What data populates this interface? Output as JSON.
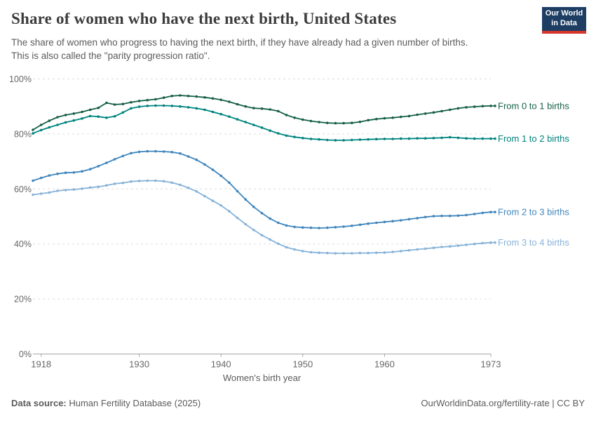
{
  "header": {
    "logo": {
      "line1": "Our World",
      "line2": "in Data",
      "bg_color": "#1d3d63",
      "stripe_color": "#d7352c"
    }
  },
  "chart_data": {
    "type": "line",
    "title": "Share of women who have the next birth, United States",
    "subtitle_lines": [
      "The share of women who progress to having the next birth, if they have already had a given number of births.",
      "This is also called the \"parity progression ratio\"."
    ],
    "xlabel": "Women's birth year",
    "ylabel": "",
    "xlim": [
      1917,
      1973
    ],
    "ylim": [
      0,
      100
    ],
    "grid": "horizontal-dashed",
    "legend_position": "right-of-line-ends",
    "x_ticks": [
      1918,
      1930,
      1940,
      1950,
      1960,
      1973
    ],
    "y_ticks": [
      0,
      20,
      40,
      60,
      80,
      100
    ],
    "y_tick_suffix": "%",
    "axis_colors": {
      "grid": "#dcdcdc",
      "axis_line": "#a3a3a3",
      "tick_label": "#676767"
    },
    "years": [
      1917,
      1918,
      1919,
      1920,
      1921,
      1922,
      1923,
      1924,
      1925,
      1926,
      1927,
      1928,
      1929,
      1930,
      1931,
      1932,
      1933,
      1934,
      1935,
      1936,
      1937,
      1938,
      1939,
      1940,
      1941,
      1942,
      1943,
      1944,
      1945,
      1946,
      1947,
      1948,
      1949,
      1950,
      1951,
      1952,
      1953,
      1954,
      1955,
      1956,
      1957,
      1958,
      1959,
      1960,
      1961,
      1962,
      1963,
      1964,
      1965,
      1966,
      1967,
      1968,
      1969,
      1970,
      1971,
      1972,
      1973
    ],
    "series": [
      {
        "name": "From 0 to 1 births",
        "color": "#17604a",
        "values": [
          81.5,
          83.3,
          84.8,
          86.1,
          86.9,
          87.4,
          88.0,
          88.8,
          89.5,
          91.3,
          90.7,
          90.9,
          91.5,
          92.0,
          92.3,
          92.6,
          93.2,
          93.8,
          94.0,
          93.8,
          93.6,
          93.3,
          92.9,
          92.4,
          91.7,
          90.8,
          90.0,
          89.4,
          89.2,
          88.9,
          88.3,
          86.9,
          85.9,
          85.2,
          84.7,
          84.3,
          84.0,
          83.9,
          83.9,
          84.0,
          84.4,
          85.0,
          85.4,
          85.7,
          85.9,
          86.2,
          86.5,
          87.0,
          87.4,
          87.8,
          88.3,
          88.8,
          89.3,
          89.7,
          89.9,
          90.1,
          90.2
        ]
      },
      {
        "name": "From 1 to 2 births",
        "color": "#00847e",
        "values": [
          80.2,
          81.4,
          82.4,
          83.3,
          84.2,
          84.9,
          85.6,
          86.5,
          86.3,
          85.9,
          86.4,
          87.8,
          89.3,
          89.9,
          90.2,
          90.3,
          90.3,
          90.2,
          90.0,
          89.7,
          89.3,
          88.8,
          88.0,
          87.2,
          86.3,
          85.3,
          84.3,
          83.3,
          82.3,
          81.2,
          80.2,
          79.4,
          78.9,
          78.5,
          78.2,
          78.0,
          77.8,
          77.7,
          77.7,
          77.8,
          77.9,
          78.0,
          78.1,
          78.2,
          78.2,
          78.3,
          78.3,
          78.4,
          78.4,
          78.5,
          78.6,
          78.8,
          78.6,
          78.4,
          78.3,
          78.3,
          78.3
        ]
      },
      {
        "name": "From 2 to 3 births",
        "color": "#4086bd",
        "values": [
          63.0,
          64.0,
          64.9,
          65.5,
          65.9,
          66.0,
          66.4,
          67.2,
          68.3,
          69.5,
          70.8,
          72.0,
          73.0,
          73.5,
          73.7,
          73.7,
          73.6,
          73.4,
          72.9,
          71.8,
          70.6,
          68.9,
          67.0,
          64.8,
          62.3,
          59.2,
          56.2,
          53.5,
          51.2,
          49.2,
          47.7,
          46.7,
          46.2,
          46.0,
          45.9,
          45.8,
          45.9,
          46.1,
          46.3,
          46.6,
          47.0,
          47.4,
          47.7,
          48.0,
          48.3,
          48.6,
          49.0,
          49.4,
          49.8,
          50.1,
          50.2,
          50.2,
          50.3,
          50.5,
          50.9,
          51.3,
          51.6
        ]
      },
      {
        "name": "From 3 to 4 births",
        "color": "#87b3d9",
        "values": [
          57.9,
          58.3,
          58.7,
          59.3,
          59.6,
          59.8,
          60.1,
          60.5,
          60.8,
          61.3,
          61.9,
          62.2,
          62.7,
          62.9,
          63.0,
          63.0,
          62.8,
          62.3,
          61.5,
          60.4,
          59.1,
          57.4,
          55.7,
          54.0,
          51.9,
          49.5,
          47.2,
          45.1,
          43.2,
          41.6,
          40.1,
          38.8,
          38.0,
          37.4,
          37.0,
          36.8,
          36.7,
          36.6,
          36.6,
          36.6,
          36.7,
          36.7,
          36.8,
          36.9,
          37.1,
          37.4,
          37.7,
          38.0,
          38.3,
          38.6,
          38.9,
          39.1,
          39.4,
          39.7,
          40.0,
          40.3,
          40.5
        ]
      }
    ]
  },
  "footer": {
    "source_label": "Data source:",
    "source_text": " Human Fertility Database (2025)",
    "right_text": "OurWorldinData.org/fertility-rate | CC BY"
  }
}
